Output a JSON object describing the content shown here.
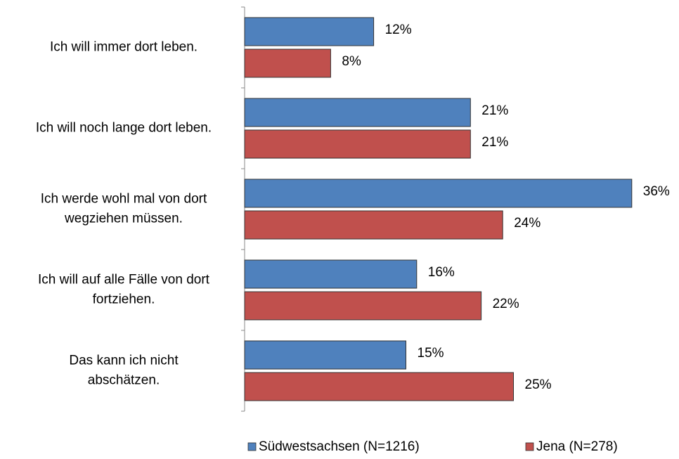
{
  "chart_data": {
    "type": "bar",
    "orientation": "horizontal",
    "categories": [
      [
        "Ich will immer dort leben."
      ],
      [
        "Ich will noch lange dort leben."
      ],
      [
        "Ich werde wohl mal von dort",
        "wegziehen müssen."
      ],
      [
        "Ich will auf alle Fälle von dort",
        "fortziehen."
      ],
      [
        "Das kann ich nicht",
        "abschätzen."
      ]
    ],
    "series": [
      {
        "name": "Südwestsachsen (N=1216)",
        "color": "#4f81bd",
        "values": [
          12,
          21,
          36,
          16,
          15
        ],
        "value_labels": [
          "12%",
          "21%",
          "36%",
          "16%",
          "15%"
        ]
      },
      {
        "name": "Jena (N=278)",
        "color": "#c0504d",
        "values": [
          8,
          21,
          24,
          22,
          25
        ],
        "value_labels": [
          "8%",
          "21%",
          "24%",
          "22%",
          "25%"
        ]
      }
    ],
    "legend": "bottom"
  }
}
